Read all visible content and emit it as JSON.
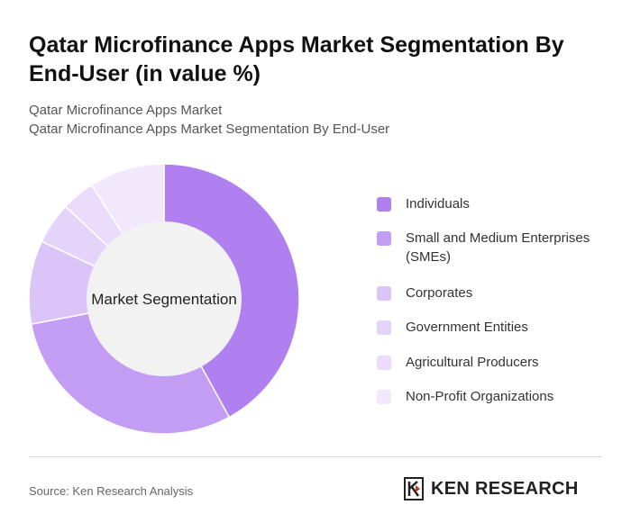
{
  "header": {
    "title": "Qatar Microfinance Apps Market Segmentation By End-User (in value %)",
    "breadcrumb": [
      "Qatar Microfinance Apps Market",
      "Qatar Microfinance Apps Market Segmentation By End-User"
    ]
  },
  "chart_data": {
    "type": "pie",
    "variant": "donut",
    "center_label": "Market Segmentation",
    "categories": [
      "Individuals",
      "Small and Medium Enterprises (SMEs)",
      "Corporates",
      "Government Entities",
      "Agricultural Producers",
      "Non-Profit Organizations"
    ],
    "values": [
      42,
      30,
      10,
      5,
      4,
      9
    ],
    "colors": [
      "#b07ff0",
      "#c39cf3",
      "#dbc4f8",
      "#e5d4f9",
      "#eadcfa",
      "#f1e8fc"
    ],
    "legend": "right"
  },
  "footer": {
    "source": "Source: Ken Research Analysis",
    "logo_text": "KEN RESEARCH"
  }
}
